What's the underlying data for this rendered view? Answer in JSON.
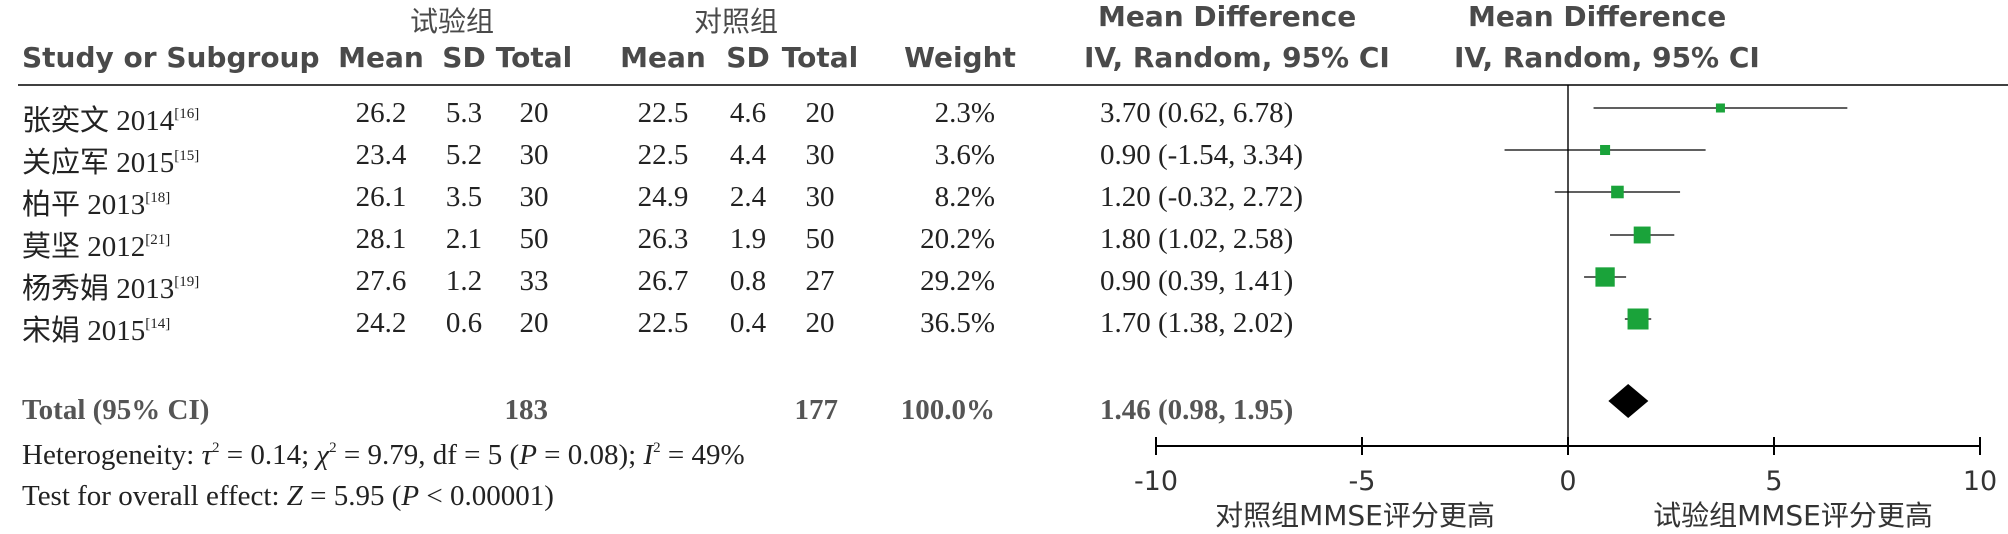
{
  "headers": {
    "group_experimental": "试验组",
    "group_control": "对照组",
    "study": "Study or Subgroup",
    "mean": "Mean",
    "sd": "SD",
    "total": "Total",
    "weight": "Weight",
    "md_title": "Mean Difference",
    "md_method": "IV, Random, 95% CI",
    "plot_title": "Mean Difference",
    "plot_method": "IV, Random, 95% CI"
  },
  "studies": [
    {
      "name": "张奕文 2014",
      "ref": "[16]",
      "exp_mean": "26.2",
      "exp_sd": "5.3",
      "exp_total": "20",
      "ctl_mean": "22.5",
      "ctl_sd": "4.6",
      "ctl_total": "20",
      "weight": "2.3%",
      "ci": "3.70 (0.62, 6.78)"
    },
    {
      "name": "关应军 2015",
      "ref": "[15]",
      "exp_mean": "23.4",
      "exp_sd": "5.2",
      "exp_total": "30",
      "ctl_mean": "22.5",
      "ctl_sd": "4.4",
      "ctl_total": "30",
      "weight": "3.6%",
      "ci": "0.90 (-1.54, 3.34)"
    },
    {
      "name": "柏平 2013",
      "ref": "[18]",
      "exp_mean": "26.1",
      "exp_sd": "3.5",
      "exp_total": "30",
      "ctl_mean": "24.9",
      "ctl_sd": "2.4",
      "ctl_total": "30",
      "weight": "8.2%",
      "ci": "1.20 (-0.32, 2.72)"
    },
    {
      "name": "莫坚 2012",
      "ref": "[21]",
      "exp_mean": "28.1",
      "exp_sd": "2.1",
      "exp_total": "50",
      "ctl_mean": "26.3",
      "ctl_sd": "1.9",
      "ctl_total": "50",
      "weight": "20.2%",
      "ci": "1.80 (1.02, 2.58)"
    },
    {
      "name": "杨秀娟 2013",
      "ref": "[19]",
      "exp_mean": "27.6",
      "exp_sd": "1.2",
      "exp_total": "33",
      "ctl_mean": "26.7",
      "ctl_sd": "0.8",
      "ctl_total": "27",
      "weight": "29.2%",
      "ci": "0.90 (0.39, 1.41)"
    },
    {
      "name": "宋娟 2015",
      "ref": "[14]",
      "exp_mean": "24.2",
      "exp_sd": "0.6",
      "exp_total": "20",
      "ctl_mean": "22.5",
      "ctl_sd": "0.4",
      "ctl_total": "20",
      "weight": "36.5%",
      "ci": "1.70 (1.38, 2.02)"
    }
  ],
  "total_row": {
    "label": "Total (95% CI)",
    "exp_total": "183",
    "ctl_total": "177",
    "weight": "100.0%",
    "ci": "1.46 (0.98, 1.95)"
  },
  "footer": {
    "heterogeneity_label": "Heterogeneity: ",
    "tau_sym": "τ",
    "tau_val": " = 0.14; ",
    "chi_sym": "χ",
    "chi_val": " = 9.79, df = 5 (",
    "p_sym": "P",
    "p_val": " = 0.08); ",
    "i_sym": "I",
    "i_val": " = 49%",
    "overall_label": "Test for overall effect: ",
    "z_sym": "Z",
    "z_val": " = 5.95 (",
    "p2_sym": "P",
    "p2_val": " < 0.00001)"
  },
  "axis": {
    "left_label": "对照组MMSE评分更高",
    "right_label": "试验组MMSE评分更高"
  },
  "colors": {
    "marker": "#1aa33a",
    "diamond": "#000000",
    "text": "#222222"
  },
  "chart_data": {
    "type": "forest",
    "x_range": [
      -10,
      10
    ],
    "x_ticks": [
      -10,
      -5,
      0,
      5,
      10
    ],
    "reference_line": 0,
    "studies": [
      {
        "name": "张奕文 2014",
        "md": 3.7,
        "lo": 0.62,
        "hi": 6.78,
        "weight": 2.3
      },
      {
        "name": "关应军 2015",
        "md": 0.9,
        "lo": -1.54,
        "hi": 3.34,
        "weight": 3.6
      },
      {
        "name": "柏平 2013",
        "md": 1.2,
        "lo": -0.32,
        "hi": 2.72,
        "weight": 8.2
      },
      {
        "name": "莫坚 2012",
        "md": 1.8,
        "lo": 1.02,
        "hi": 2.58,
        "weight": 20.2
      },
      {
        "name": "杨秀娟 2013",
        "md": 0.9,
        "lo": 0.39,
        "hi": 1.41,
        "weight": 29.2
      },
      {
        "name": "宋娟 2015",
        "md": 1.7,
        "lo": 1.38,
        "hi": 2.02,
        "weight": 36.5
      }
    ],
    "pooled": {
      "md": 1.46,
      "lo": 0.98,
      "hi": 1.95
    }
  }
}
